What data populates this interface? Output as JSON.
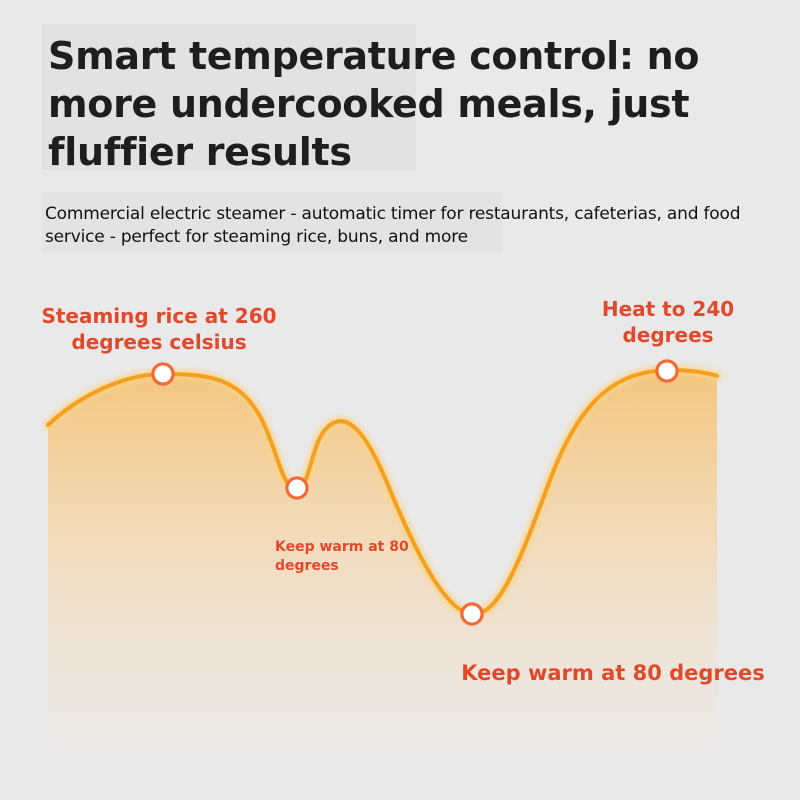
{
  "headline": "Smart temperature control: no more undercooked meals, just fluffier results",
  "subheadline": "Commercial electric steamer - automatic timer for restaurants, cafeterias, and food service - perfect for steaming rice, buns, and more",
  "colors": {
    "curve": "#f4a01c",
    "label": "#e2492a",
    "marker_ring": "#f06a35",
    "background": "#e9e9e9"
  },
  "annotations": {
    "steaming": "Steaming rice at 260 degrees celsius",
    "keep_warm_small": "Keep warm at 80 degrees",
    "keep_warm_large": "Keep warm at 80 degrees",
    "heat": "Heat to 240 degrees"
  }
}
